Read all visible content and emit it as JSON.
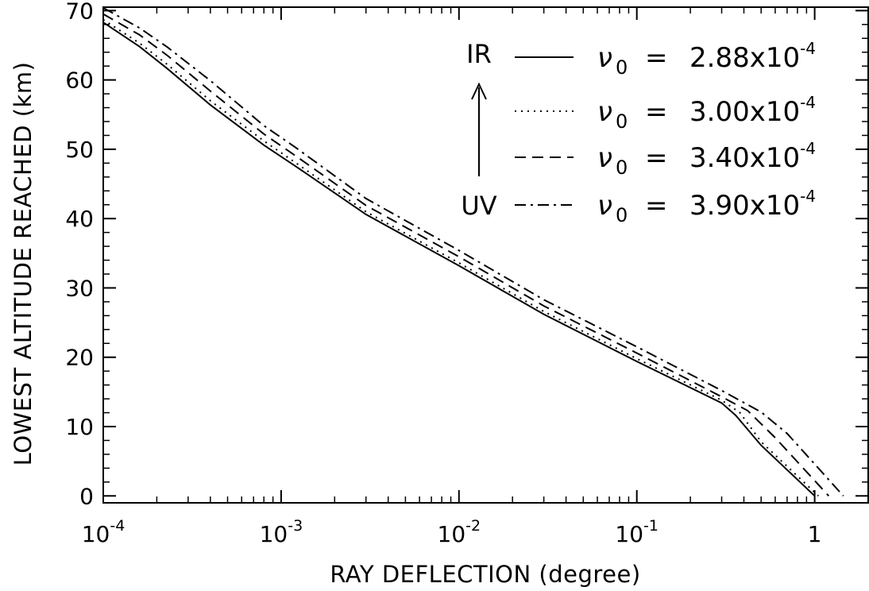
{
  "chart_data": {
    "type": "line",
    "xlabel": "RAY DEFLECTION (degree)",
    "ylabel": "LOWEST ALTITUDE REACHED (km)",
    "x_scale": "log",
    "xlim": [
      0.0001,
      2.0
    ],
    "ylim": [
      -1,
      70.5
    ],
    "x_ticks": [
      {
        "value": 0.0001,
        "base": "10",
        "exp": "-4"
      },
      {
        "value": 0.001,
        "base": "10",
        "exp": "-3"
      },
      {
        "value": 0.01,
        "base": "10",
        "exp": "-2"
      },
      {
        "value": 0.1,
        "base": "10",
        "exp": "-1"
      },
      {
        "value": 1,
        "base": "1",
        "exp": ""
      }
    ],
    "y_ticks": [
      0,
      10,
      20,
      30,
      40,
      50,
      60,
      70
    ],
    "y_tick_labels": [
      "0",
      "10",
      "20",
      "30",
      "40",
      "50",
      "60",
      "70"
    ],
    "grid": false,
    "legend_placement": "top-right",
    "arrow_top_label": "IR",
    "arrow_bottom_label": "UV",
    "series": [
      {
        "name": "ν0 = 2.88x10^-4",
        "nu": "ν",
        "sub": "0",
        "eq": "=",
        "mant": "2.88x10",
        "exp": "-4",
        "style": "solid",
        "x": [
          0.0001,
          0.00016,
          0.00023,
          0.0004,
          0.0008,
          0.0012,
          0.003,
          0.01,
          0.03,
          0.1,
          0.3,
          0.36,
          0.5,
          1.0
        ],
        "y": [
          68.3,
          64.8,
          61.6,
          56.4,
          50.6,
          47.6,
          40.6,
          33.2,
          26.2,
          19.4,
          13.4,
          11.6,
          7.3,
          0.0
        ]
      },
      {
        "name": "ν0 = 3.00x10^-4",
        "nu": "ν",
        "sub": "0",
        "eq": "=",
        "mant": "3.00x10",
        "exp": "-4",
        "style": "dotted",
        "x": [
          0.0001,
          0.00016,
          0.00023,
          0.0004,
          0.0008,
          0.0012,
          0.003,
          0.01,
          0.03,
          0.1,
          0.3,
          0.38,
          0.5,
          1.05
        ],
        "y": [
          68.7,
          65.3,
          62.2,
          57.0,
          51.2,
          48.1,
          41.0,
          33.6,
          26.6,
          19.8,
          13.8,
          12.0,
          7.8,
          0.0
        ]
      },
      {
        "name": "ν0 = 3.40x10^-4",
        "nu": "ν",
        "sub": "0",
        "eq": "=",
        "mant": "3.40x10",
        "exp": "-4",
        "style": "dashed",
        "x": [
          0.0001,
          0.00016,
          0.00023,
          0.0004,
          0.0008,
          0.0012,
          0.003,
          0.01,
          0.03,
          0.1,
          0.3,
          0.42,
          0.6,
          1.2
        ],
        "y": [
          69.5,
          66.5,
          63.5,
          58.4,
          52.2,
          49.1,
          41.9,
          34.5,
          27.4,
          20.6,
          14.3,
          12.3,
          8.4,
          0.0
        ]
      },
      {
        "name": "ν0 = 3.90x10^-4",
        "nu": "ν",
        "sub": "0",
        "eq": "=",
        "mant": "3.90x10",
        "exp": "-4",
        "style": "dashdot",
        "x": [
          0.0001,
          0.00016,
          0.00023,
          0.0004,
          0.0008,
          0.0012,
          0.003,
          0.01,
          0.03,
          0.1,
          0.3,
          0.5,
          0.7,
          1.45
        ],
        "y": [
          70.4,
          67.5,
          64.7,
          59.9,
          53.4,
          50.3,
          42.9,
          35.4,
          28.3,
          21.5,
          15.2,
          12.1,
          9.0,
          0.0
        ]
      }
    ]
  }
}
